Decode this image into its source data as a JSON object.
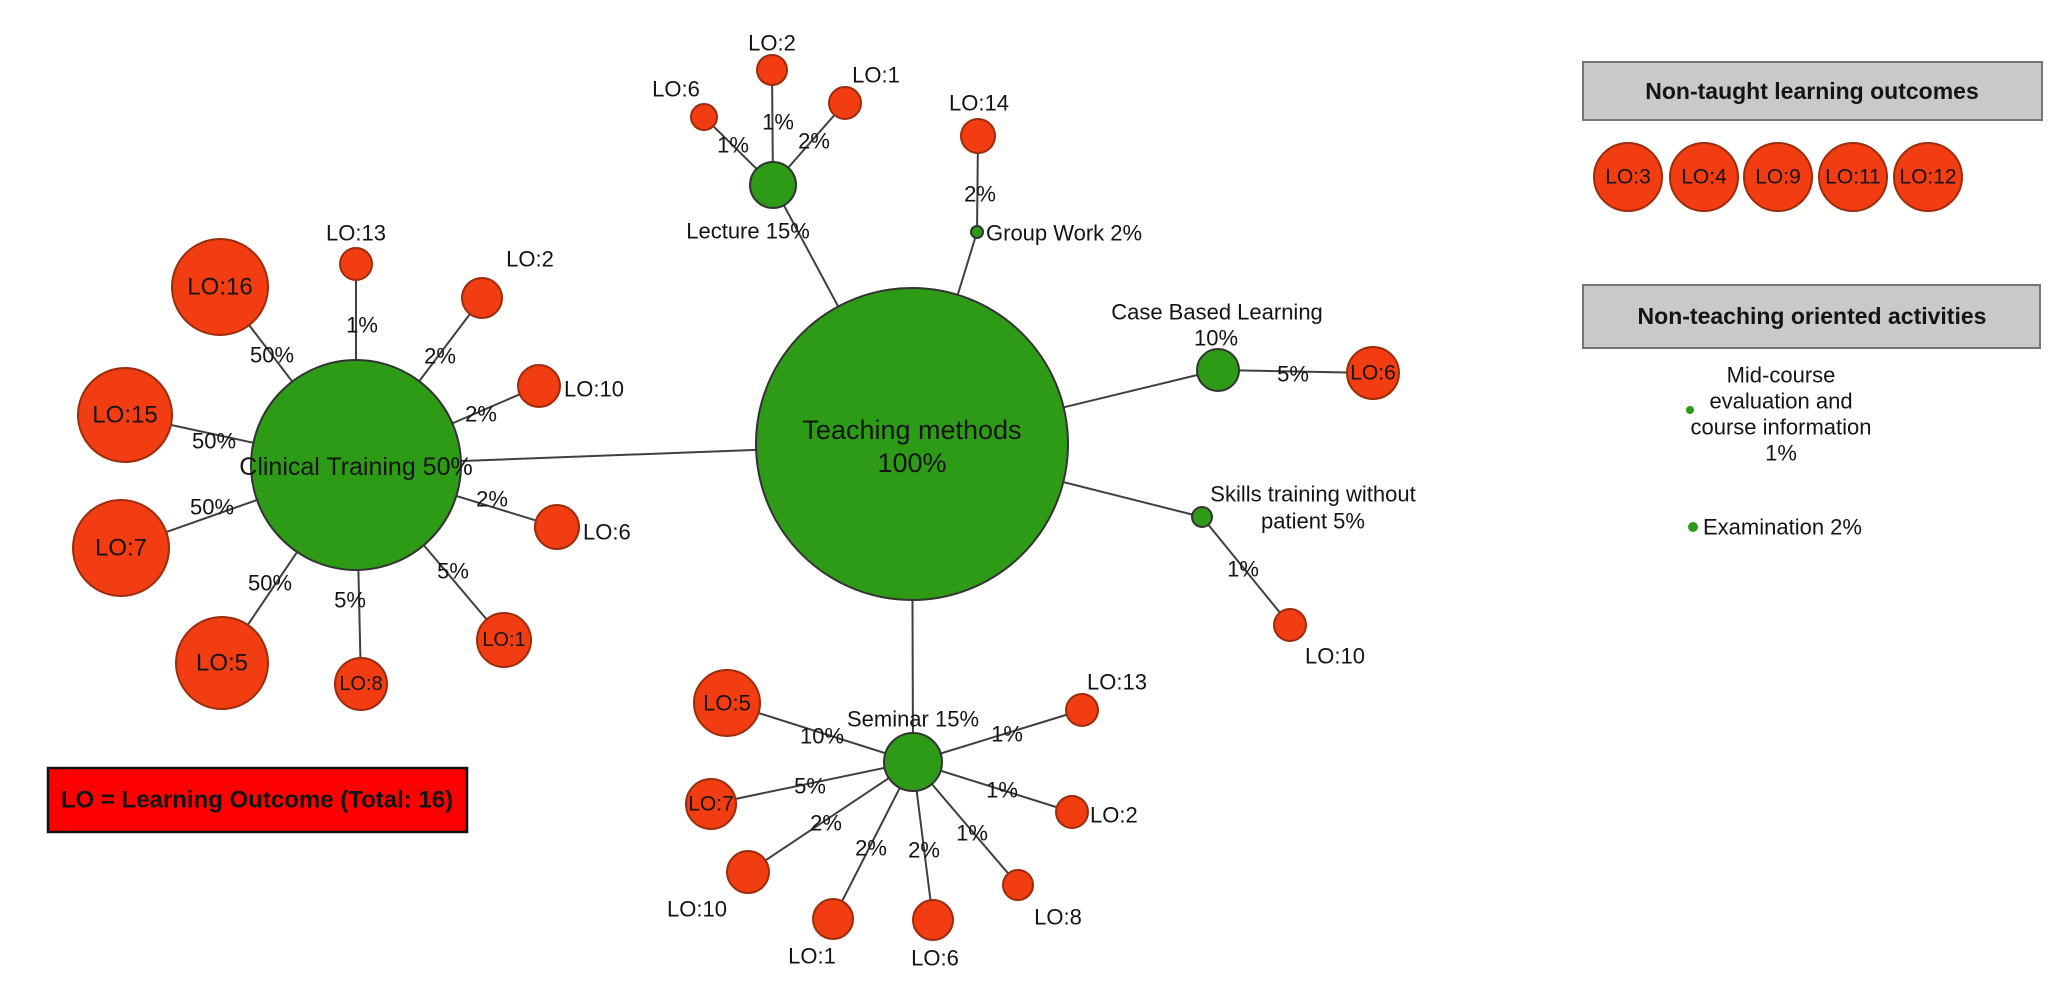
{
  "colors": {
    "method_fill": "#2e9b17",
    "method_stroke": "#333333",
    "outcome_fill": "#f23c11",
    "outcome_stroke": "#9c2c0c",
    "edge_line": "#3f3f3f",
    "method_label_text": "#cdf3bd",
    "outcome_inner_text": "#7e150a",
    "black_text": "#141414",
    "panel_fill": "#c9c9c9",
    "panel_border": "#757575",
    "note_fill": "#ff0000",
    "note_border": "#111111",
    "note_text": "#5e0f00"
  },
  "hub": {
    "label": "Teaching methods 100%",
    "label_lines": [
      "Teaching methods",
      "100%"
    ]
  },
  "methods": [
    {
      "id": "clinical-training",
      "label": "Clinical Training 50%",
      "outcomes": [
        {
          "name": "LO:16",
          "pct": "50%"
        },
        {
          "name": "LO:13",
          "pct": "1%"
        },
        {
          "name": "LO:2",
          "pct": "2%"
        },
        {
          "name": "LO:10",
          "pct": "2%"
        },
        {
          "name": "LO:15",
          "pct": "50%"
        },
        {
          "name": "LO:7",
          "pct": "50%"
        },
        {
          "name": "LO:5",
          "pct": "50%"
        },
        {
          "name": "LO:8",
          "pct": "5%"
        },
        {
          "name": "LO:1",
          "pct": "5%"
        },
        {
          "name": "LO:6",
          "pct": "2%"
        }
      ]
    },
    {
      "id": "lecture",
      "label": "Lecture 15%",
      "outcomes": [
        {
          "name": "LO:6",
          "pct": "1%"
        },
        {
          "name": "LO:2",
          "pct": "1%"
        },
        {
          "name": "LO:1",
          "pct": "2%"
        }
      ]
    },
    {
      "id": "group-work",
      "label": "Group Work 2%",
      "outcomes": [
        {
          "name": "LO:14",
          "pct": "2%"
        }
      ]
    },
    {
      "id": "case-based-learning",
      "label": "Case Based Learning 10%",
      "label_lines": [
        "Case Based Learning",
        "10%"
      ],
      "outcomes": [
        {
          "name": "LO:6",
          "pct": "5%"
        }
      ]
    },
    {
      "id": "skills-training-without-patient",
      "label": "Skills training without patient 5%",
      "label_lines": [
        "Skills training without",
        "patient 5%"
      ],
      "outcomes": [
        {
          "name": "LO:10",
          "pct": "1%"
        }
      ]
    },
    {
      "id": "seminar",
      "label": "Seminar 15%",
      "outcomes": [
        {
          "name": "LO:5",
          "pct": "10%"
        },
        {
          "name": "LO:7",
          "pct": "5%"
        },
        {
          "name": "LO:10",
          "pct": "2%"
        },
        {
          "name": "LO:1",
          "pct": "2%"
        },
        {
          "name": "LO:6",
          "pct": "2%"
        },
        {
          "name": "LO:8",
          "pct": "1%"
        },
        {
          "name": "LO:2",
          "pct": "1%"
        },
        {
          "name": "LO:13",
          "pct": "1%"
        }
      ]
    }
  ],
  "legends": {
    "non_taught": {
      "title": "Non-taught learning outcomes",
      "items": [
        "LO:3",
        "LO:4",
        "LO:9",
        "LO:11",
        "LO:12"
      ]
    },
    "non_teaching": {
      "title": "Non-teaching oriented activities",
      "activities": [
        {
          "label": "Mid-course evaluation and course information 1%",
          "label_lines": [
            "Mid-course",
            "evaluation and",
            "course information",
            "1%"
          ]
        },
        {
          "label": "Examination 2%",
          "label_lines": [
            "Examination 2%"
          ]
        }
      ]
    }
  },
  "note": {
    "text": "LO = Learning Outcome (Total: 16)"
  }
}
